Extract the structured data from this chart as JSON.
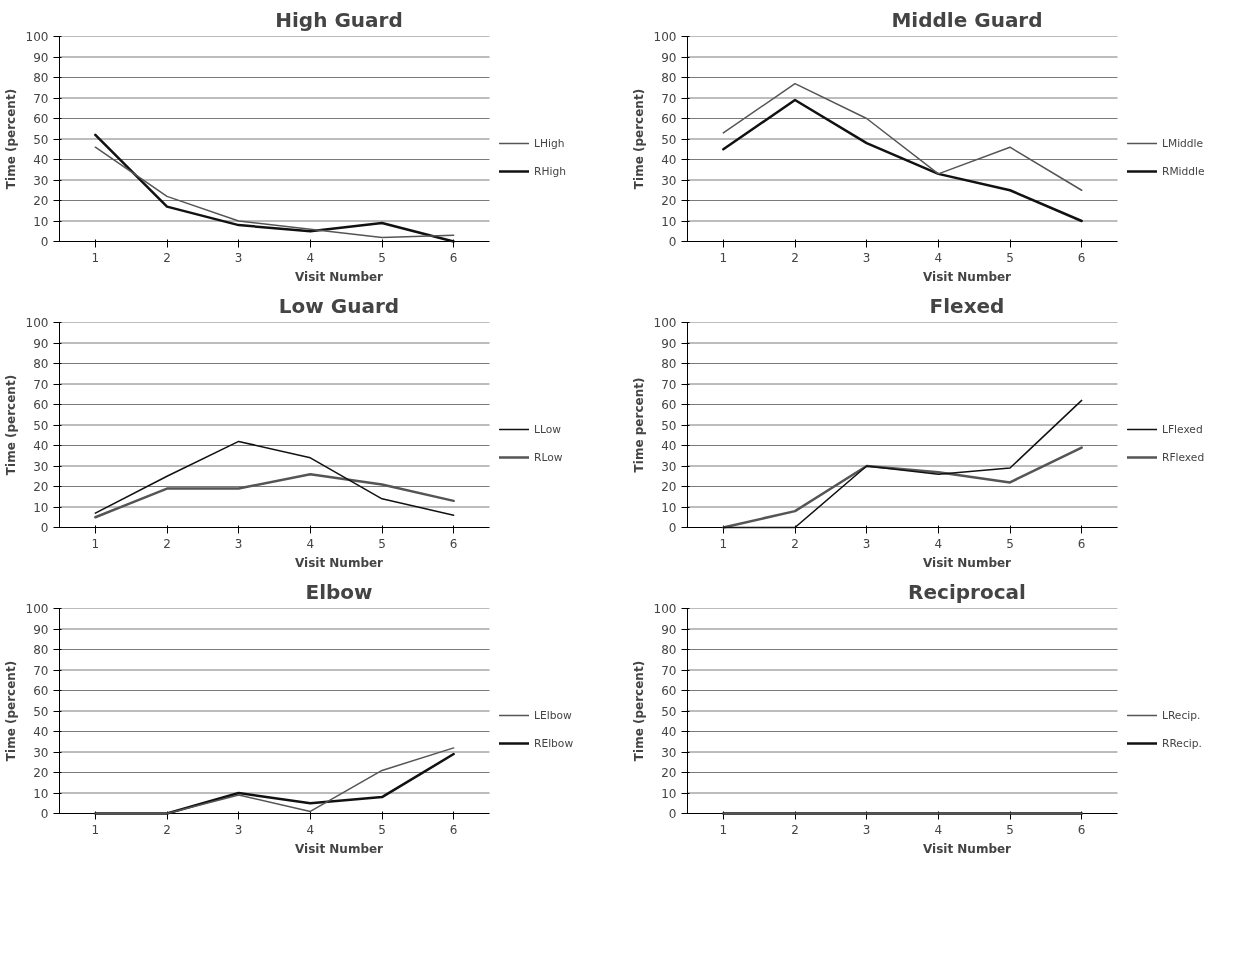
{
  "chart_data": [
    {
      "type": "line",
      "title": "High Guard",
      "xlabel": "Visit Number",
      "ylabel": "Time (percent)",
      "categories": [
        "1",
        "2",
        "3",
        "4",
        "5",
        "6"
      ],
      "ylim": [
        0,
        100
      ],
      "yticks": [
        0,
        10,
        20,
        30,
        40,
        50,
        60,
        70,
        80,
        90,
        100
      ],
      "grid": "y",
      "legend": "right",
      "marker": "none",
      "series": [
        {
          "name": "LHigh",
          "color": "#555555",
          "values": [
            46,
            22,
            10,
            6,
            2,
            3
          ]
        },
        {
          "name": "RHigh",
          "color": "#111111",
          "values": [
            52,
            17,
            8,
            5,
            9,
            0
          ]
        }
      ]
    },
    {
      "type": "line",
      "title": "Middle Guard",
      "xlabel": "Visit Number",
      "ylabel": "Time (percent)",
      "categories": [
        "1",
        "2",
        "3",
        "4",
        "5",
        "6"
      ],
      "ylim": [
        0,
        100
      ],
      "yticks": [
        0,
        10,
        20,
        30,
        40,
        50,
        60,
        70,
        80,
        90,
        100
      ],
      "grid": "y",
      "legend": "right",
      "marker": "none",
      "series": [
        {
          "name": "LMiddle",
          "color": "#555555",
          "values": [
            53,
            77,
            60,
            33,
            46,
            25
          ]
        },
        {
          "name": "RMiddle",
          "color": "#111111",
          "values": [
            45,
            69,
            48,
            33,
            25,
            10
          ]
        }
      ]
    },
    {
      "type": "line",
      "title": "Low Guard",
      "xlabel": "Visit Number",
      "ylabel": "Time (percent)",
      "categories": [
        "1",
        "2",
        "3",
        "4",
        "5",
        "6"
      ],
      "ylim": [
        0,
        100
      ],
      "yticks": [
        0,
        10,
        20,
        30,
        40,
        50,
        60,
        70,
        80,
        90,
        100
      ],
      "grid": "y",
      "legend": "right",
      "marker": "none",
      "series": [
        {
          "name": "LLow",
          "color": "#111111",
          "values": [
            7,
            25,
            42,
            34,
            14,
            6
          ]
        },
        {
          "name": "RLow",
          "color": "#555555",
          "values": [
            5,
            19,
            19,
            26,
            21,
            13
          ]
        }
      ]
    },
    {
      "type": "line",
      "title": "Flexed",
      "xlabel": "Visit Number",
      "ylabel": "Time percent)",
      "categories": [
        "1",
        "2",
        "3",
        "4",
        "5",
        "6"
      ],
      "ylim": [
        0,
        100
      ],
      "yticks": [
        0,
        10,
        20,
        30,
        40,
        50,
        60,
        70,
        80,
        90,
        100
      ],
      "grid": "y",
      "legend": "right",
      "marker": "none",
      "series": [
        {
          "name": "LFlexed",
          "color": "#111111",
          "values": [
            0,
            0,
            30,
            26,
            29,
            62
          ]
        },
        {
          "name": "RFlexed",
          "color": "#555555",
          "values": [
            0,
            8,
            30,
            27,
            22,
            39
          ]
        }
      ]
    },
    {
      "type": "line",
      "title": "Elbow",
      "xlabel": "Visit Number",
      "ylabel": "Time (percent)",
      "categories": [
        "1",
        "2",
        "3",
        "4",
        "5",
        "6"
      ],
      "ylim": [
        0,
        100
      ],
      "yticks": [
        0,
        10,
        20,
        30,
        40,
        50,
        60,
        70,
        80,
        90,
        100
      ],
      "grid": "y",
      "legend": "right",
      "marker": "none",
      "series": [
        {
          "name": "LElbow",
          "color": "#555555",
          "values": [
            0,
            0,
            9,
            1,
            21,
            32
          ]
        },
        {
          "name": "RElbow",
          "color": "#111111",
          "values": [
            0,
            0,
            10,
            5,
            8,
            29
          ]
        }
      ]
    },
    {
      "type": "line",
      "title": "Reciprocal",
      "xlabel": "Visit Number",
      "ylabel": "Time (percent)",
      "categories": [
        "1",
        "2",
        "3",
        "4",
        "5",
        "6"
      ],
      "ylim": [
        0,
        100
      ],
      "yticks": [
        0,
        10,
        20,
        30,
        40,
        50,
        60,
        70,
        80,
        90,
        100
      ],
      "grid": "y",
      "legend": "right",
      "marker": "none",
      "series": [
        {
          "name": "LRecip.",
          "color": "#555555",
          "values": [
            0,
            0,
            0,
            0,
            0,
            0
          ]
        },
        {
          "name": "RRecip.",
          "color": "#111111",
          "values": [
            0,
            0,
            0,
            0,
            0,
            0
          ]
        }
      ]
    }
  ]
}
